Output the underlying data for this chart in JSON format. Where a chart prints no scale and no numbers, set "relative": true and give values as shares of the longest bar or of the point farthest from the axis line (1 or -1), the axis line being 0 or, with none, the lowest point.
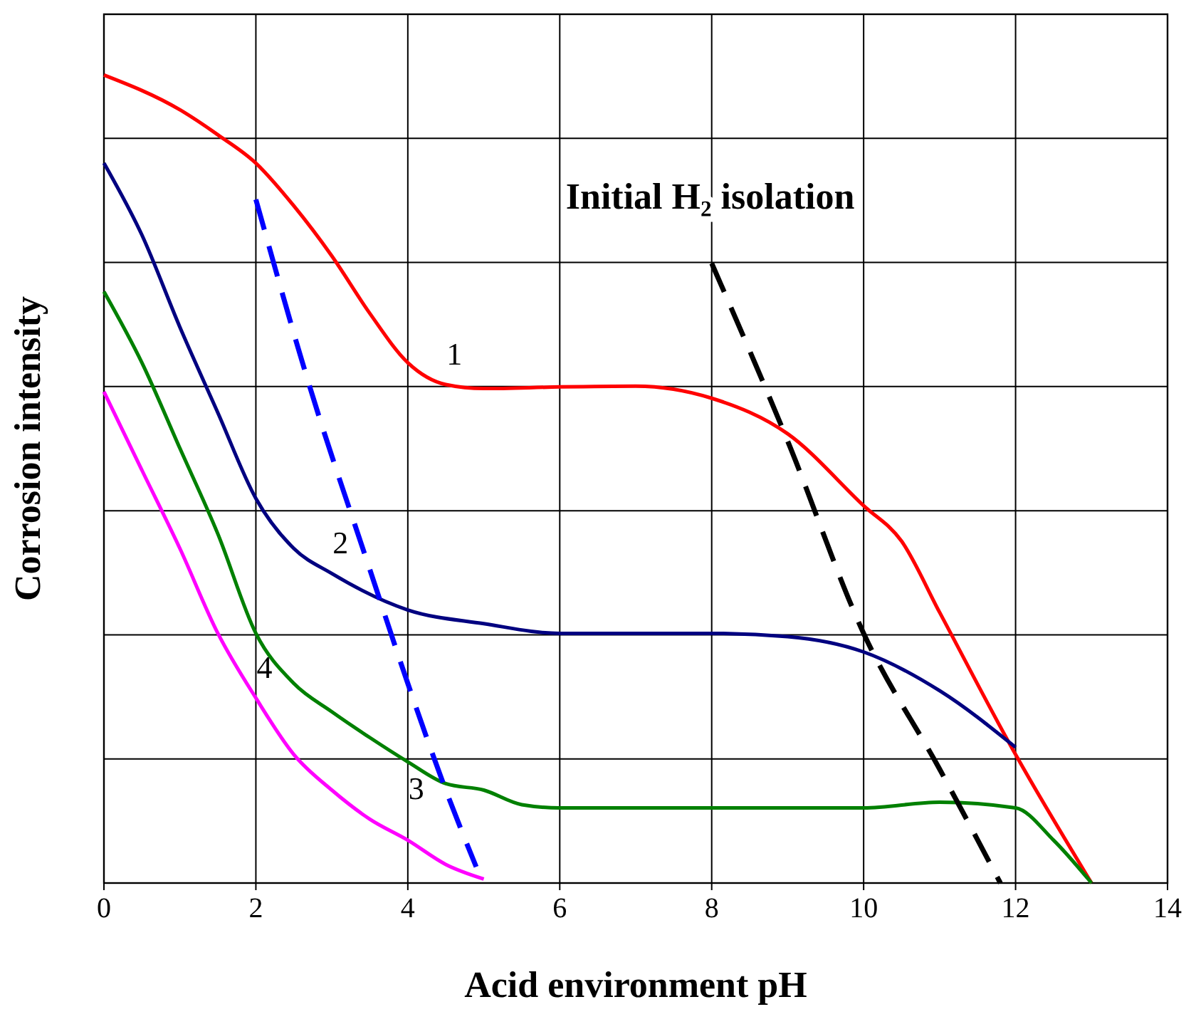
{
  "chart_data": {
    "type": "line",
    "xlabel": "Acid environment pH",
    "ylabel": "Corrosion intensity",
    "relative": true,
    "xlim": [
      0,
      14
    ],
    "xticks": [
      0,
      2,
      4,
      6,
      8,
      10,
      12,
      14
    ],
    "grid": true,
    "marker": "none",
    "line_style": "solid",
    "series": [
      {
        "name": "1",
        "color": "#ff0000",
        "x": [
          0,
          1,
          1.5,
          2,
          2.5,
          3,
          3.5,
          4,
          4.5,
          5,
          6,
          7,
          8,
          9,
          10,
          10.5,
          11,
          12,
          13
        ],
        "values": [
          1.0,
          0.957,
          0.926,
          0.891,
          0.838,
          0.776,
          0.705,
          0.644,
          0.617,
          0.612,
          0.614,
          0.615,
          0.6,
          0.556,
          0.467,
          0.423,
          0.335,
          0.159,
          0
        ]
      },
      {
        "name": "2",
        "color": "#000080",
        "x": [
          0,
          0.5,
          1,
          1.5,
          2,
          2.5,
          3,
          4,
          5,
          6,
          8,
          9,
          10,
          11,
          12
        ],
        "values": [
          0.891,
          0.802,
          0.688,
          0.582,
          0.476,
          0.414,
          0.383,
          0.338,
          0.321,
          0.309,
          0.309,
          0.305,
          0.286,
          0.238,
          0.168
        ]
      },
      {
        "name": "3",
        "color": "#008000",
        "x": [
          0,
          0.5,
          1,
          1.5,
          2,
          2.5,
          3,
          3.5,
          4,
          4.5,
          5,
          5.5,
          6,
          8,
          10,
          11,
          12,
          12.5,
          13
        ],
        "values": [
          0.732,
          0.644,
          0.538,
          0.432,
          0.309,
          0.247,
          0.212,
          0.18,
          0.15,
          0.123,
          0.115,
          0.097,
          0.093,
          0.093,
          0.093,
          0.1,
          0.093,
          0.053,
          0
        ]
      },
      {
        "name": "4",
        "color": "#ff00ff",
        "x": [
          0,
          0.5,
          1,
          1.5,
          2,
          2.5,
          3,
          3.5,
          4,
          4.5,
          5
        ],
        "values": [
          0.608,
          0.511,
          0.414,
          0.309,
          0.229,
          0.159,
          0.115,
          0.079,
          0.053,
          0.023,
          0.005
        ]
      },
      {
        "color": "#0000ff",
        "line_style": "dashed",
        "x": [
          2,
          2.7,
          3.5,
          4,
          4.5,
          4.9
        ],
        "values": [
          0.846,
          0.617,
          0.388,
          0.247,
          0.115,
          0.02
        ]
      },
      {
        "color": "#000000",
        "line_style": "dashed",
        "x": [
          8,
          9,
          10,
          11,
          11.8
        ],
        "values": [
          0.767,
          0.547,
          0.309,
          0.141,
          0
        ]
      }
    ],
    "annotations": [
      "Initial H₂ isolation"
    ]
  }
}
